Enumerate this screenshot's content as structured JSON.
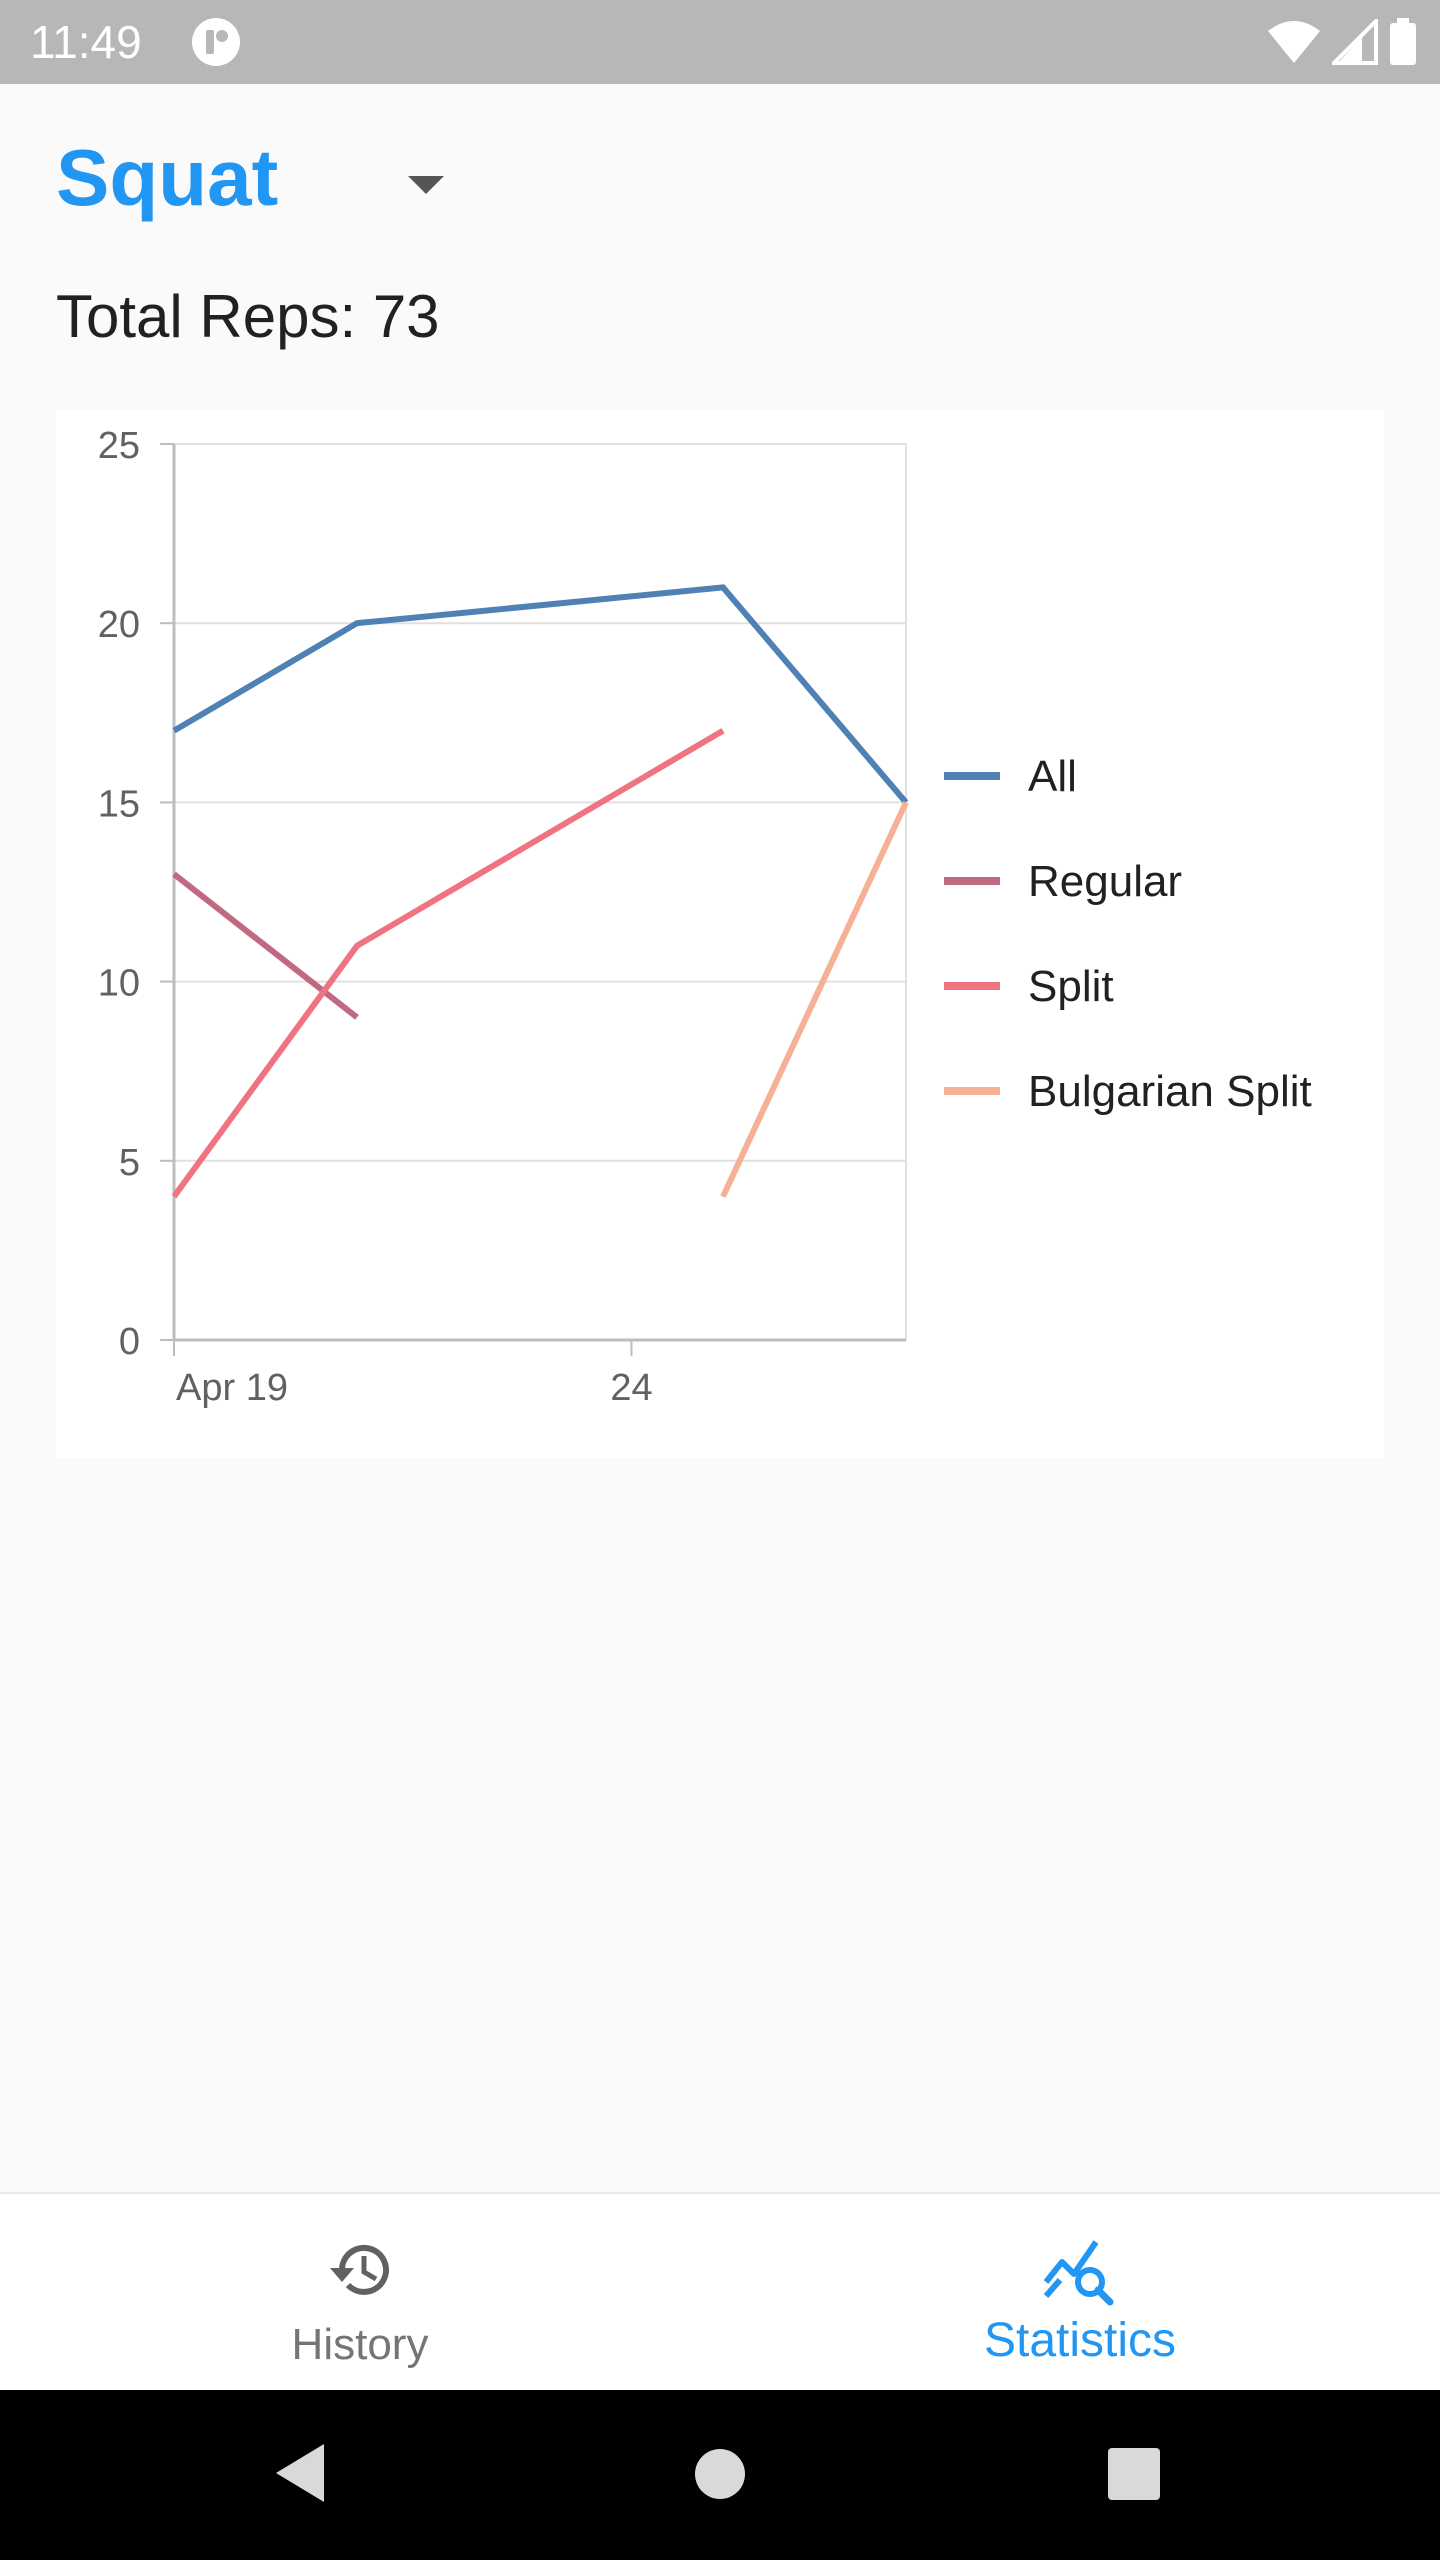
{
  "status_bar": {
    "time": "11:49",
    "icons": [
      "app-notification-icon",
      "wifi-icon",
      "signal-icon",
      "battery-icon"
    ]
  },
  "header": {
    "exercise": "Squat",
    "total_reps_label": "Total Reps: 73"
  },
  "chart_data": {
    "type": "line",
    "x_axis": {
      "type": "date",
      "range": [
        "2019-04-19",
        "2019-04-27"
      ],
      "tick_labels": [
        "Apr 19",
        "24"
      ],
      "tick_values": [
        "2019-04-19",
        "2019-04-24"
      ]
    },
    "y_axis": {
      "ylim": [
        0,
        25
      ],
      "ticks": [
        0,
        5,
        10,
        15,
        20,
        25
      ]
    },
    "grid": true,
    "legend_position": "right",
    "series": [
      {
        "name": "All",
        "color": "#4f81b4",
        "points": [
          [
            "2019-04-19",
            17
          ],
          [
            "2019-04-21",
            20
          ],
          [
            "2019-04-25",
            21
          ],
          [
            "2019-04-27",
            15
          ]
        ]
      },
      {
        "name": "Regular",
        "color": "#c06a82",
        "points": [
          [
            "2019-04-19",
            13
          ],
          [
            "2019-04-21",
            9
          ]
        ]
      },
      {
        "name": "Split",
        "color": "#f07382",
        "points": [
          [
            "2019-04-19",
            4
          ],
          [
            "2019-04-21",
            11
          ],
          [
            "2019-04-25",
            17
          ]
        ]
      },
      {
        "name": "Bulgarian Split",
        "color": "#f6b095",
        "points": [
          [
            "2019-04-25",
            4
          ],
          [
            "2019-04-27",
            15
          ]
        ]
      }
    ]
  },
  "bottom_nav": {
    "items": [
      {
        "label": "History",
        "icon": "history-icon",
        "active": false
      },
      {
        "label": "Statistics",
        "icon": "statistics-icon",
        "active": true
      }
    ],
    "active_color": "#2196f3",
    "inactive_color": "#757575"
  },
  "system_nav": {
    "icons": [
      "back-icon",
      "home-icon",
      "recents-icon"
    ]
  }
}
